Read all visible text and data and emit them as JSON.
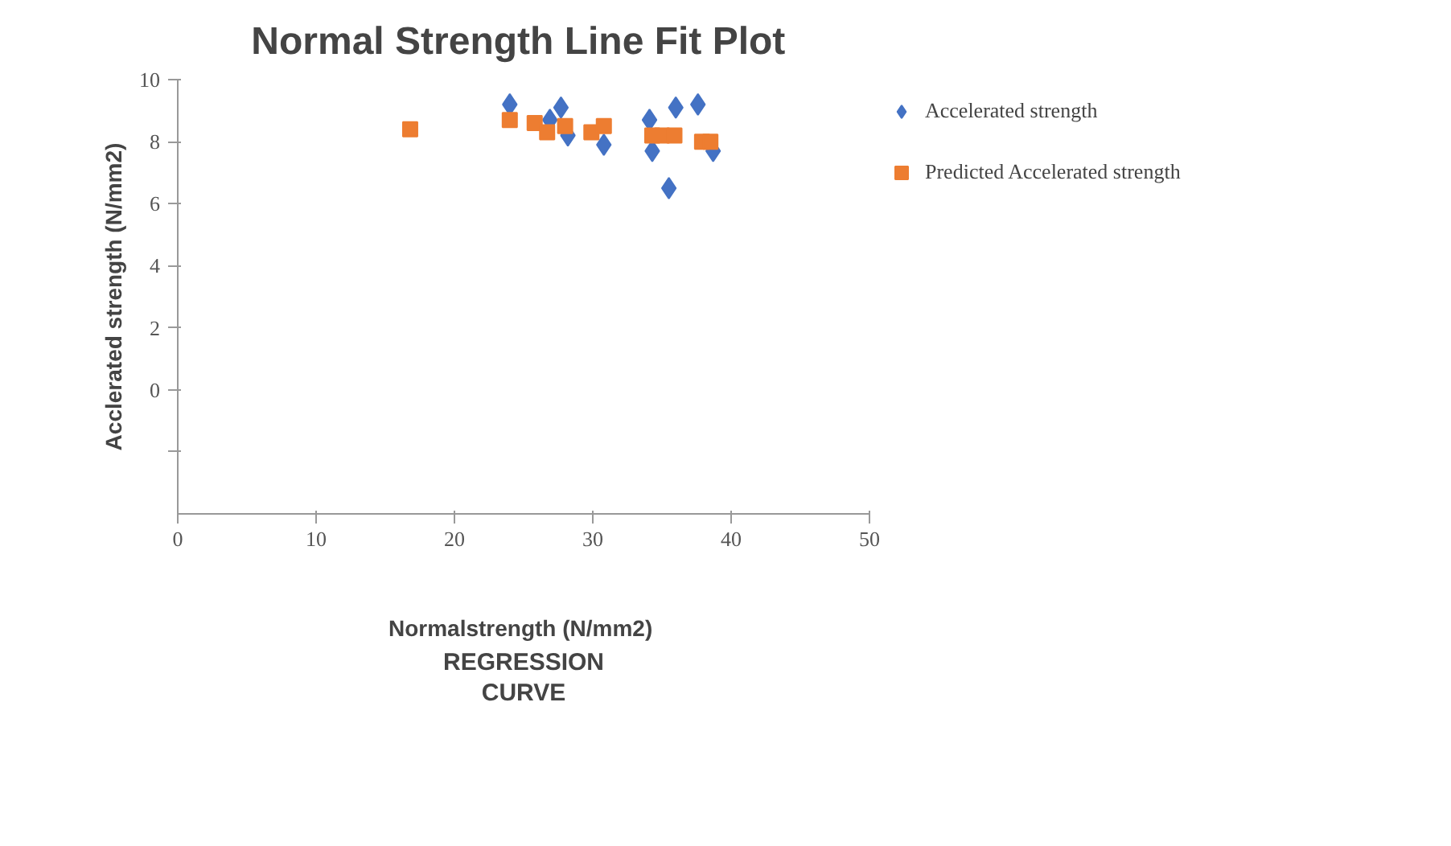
{
  "chart_data": {
    "type": "scatter",
    "title": "Normal Strength Line Fit  Plot",
    "xlabel": "Normalstrength  (N/mm2)",
    "ylabel": "Acclerated strength (N/mm2)",
    "annotations": [
      "REGRESSION\nCURVE"
    ],
    "series": [
      {
        "name": "Accelerated strength",
        "color": "#4472c4",
        "marker": "diamond",
        "x": [
          24.0,
          26.9,
          27.7,
          28.2,
          30.8,
          34.1,
          34.3,
          35.5,
          36.0,
          37.6,
          38.7
        ],
        "values": [
          9.2,
          8.7,
          9.1,
          8.2,
          7.9,
          8.7,
          7.7,
          6.5,
          9.1,
          9.2,
          7.7
        ]
      },
      {
        "name": "Predicted Accelerated strength",
        "color": "#ed7d31",
        "marker": "square",
        "x": [
          16.8,
          24.0,
          25.8,
          26.7,
          28.0,
          29.9,
          30.8,
          34.3,
          35.0,
          35.9,
          37.9,
          38.5
        ],
        "values": [
          8.4,
          8.7,
          8.6,
          8.3,
          8.5,
          8.3,
          8.5,
          8.2,
          8.2,
          8.2,
          8.0,
          8.0
        ]
      }
    ],
    "xlim": [
      0,
      50
    ],
    "xticks": [
      0,
      10,
      20,
      30,
      40,
      50
    ],
    "ylim": [
      -4,
      10
    ],
    "yticks": [
      {
        "value": -2,
        "label": null
      },
      0,
      2,
      4,
      6,
      8,
      10
    ],
    "grid": false,
    "legend": "right"
  }
}
